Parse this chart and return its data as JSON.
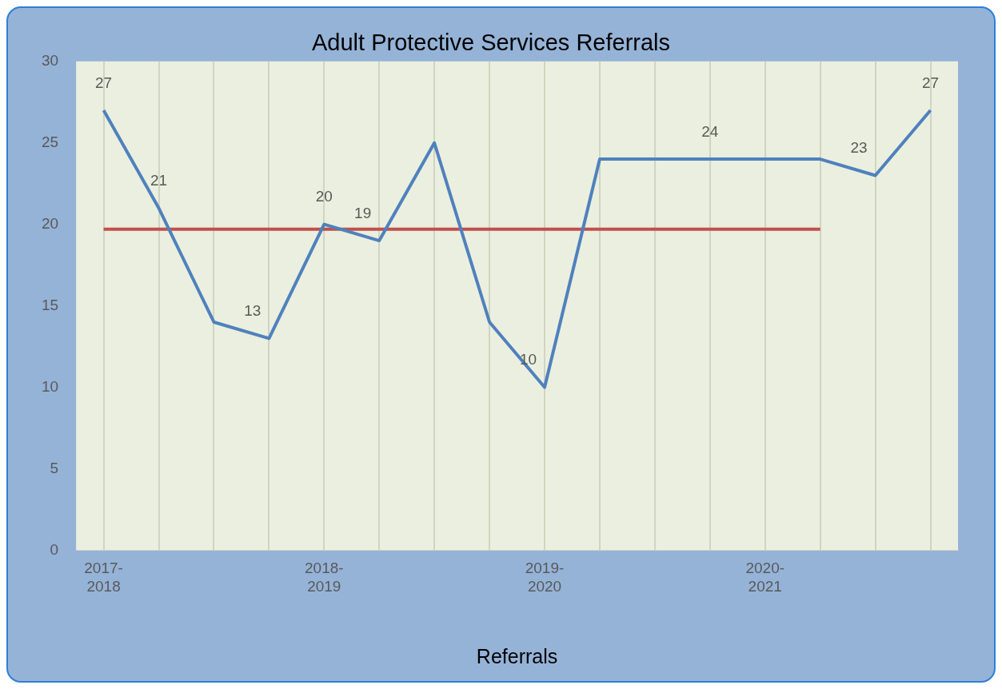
{
  "chart_data": {
    "type": "line",
    "title": "Adult Protective Services Referrals",
    "xlabel": "Referrals",
    "categories": [
      "2017-2018",
      null,
      null,
      null,
      "2018-2019",
      null,
      null,
      null,
      "2019-2020",
      null,
      null,
      null,
      "2020-2021",
      null,
      null,
      null
    ],
    "series": [
      {
        "color": "#4f81bd",
        "values": [
          27,
          21,
          14,
          13,
          20,
          19,
          25,
          14,
          10,
          24,
          24,
          24,
          24,
          24,
          23,
          27
        ],
        "value_labels": [
          "27",
          "21",
          null,
          "13",
          "20",
          "19",
          null,
          null,
          "10",
          null,
          null,
          "24",
          null,
          null,
          "23",
          "27"
        ]
      },
      {
        "color": "#c0504d",
        "values": [
          19.7,
          19.7,
          19.7,
          19.7,
          19.7,
          19.7,
          19.7,
          19.7,
          19.7,
          19.7,
          19.7,
          19.7,
          19.7,
          19.7,
          null,
          null
        ]
      }
    ],
    "ylim": [
      0,
      30
    ],
    "yticks": [
      0,
      5,
      10,
      15,
      20,
      25,
      30
    ],
    "grid": "x",
    "legend": false,
    "marker": "none",
    "line_style": "solid"
  }
}
